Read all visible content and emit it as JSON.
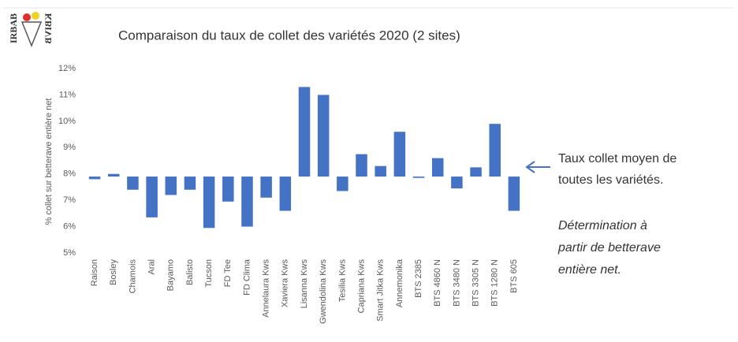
{
  "logo": {
    "top": "IRBAB",
    "bottom": "KBIVB"
  },
  "chart_data": {
    "type": "bar",
    "title": "Comparaison du taux de collet des variétés 2020 (2 sites)",
    "y_label": "% collet sur betterave entière net",
    "categories": [
      "Raison",
      "Bosley",
      "Chamois",
      "Aral",
      "Bayamo",
      "Balisto",
      "Tucson",
      "FD Tee",
      "FD Clima",
      "Annelaura Kws",
      "Xaviera Kws",
      "Lisanna Kws",
      "Gwendolina Kws",
      "Tesilia Kws",
      "Capriana Kws",
      "Smart Jitka Kws",
      "Annemonika",
      "BTS 2385",
      "BTS 4860 N",
      "BTS 3480 N",
      "BTS 3305 N",
      "BTS 1280 N",
      "BTS 605"
    ],
    "values": [
      7.8,
      8.0,
      7.4,
      6.35,
      7.2,
      7.4,
      5.95,
      6.95,
      6.0,
      7.1,
      6.6,
      11.3,
      11.0,
      7.35,
      8.75,
      8.3,
      9.6,
      7.85,
      8.6,
      7.45,
      8.25,
      9.9,
      6.6
    ],
    "baseline": 7.9,
    "color": "#4472c4",
    "ylim": [
      5,
      12
    ],
    "yticks": [
      {
        "value": 5,
        "label": "5%"
      },
      {
        "value": 6,
        "label": "6%"
      },
      {
        "value": 7,
        "label": "7%"
      },
      {
        "value": 8,
        "label": "8%"
      },
      {
        "value": 9,
        "label": "9%"
      },
      {
        "value": 10,
        "label": "10%"
      },
      {
        "value": 11,
        "label": "11%"
      },
      {
        "value": 12,
        "label": "12%"
      }
    ],
    "grid": false,
    "annotations": [
      "Taux collet moyen de",
      "toutes les variétés.",
      "Détermination à",
      "partir de betterave",
      "entière net."
    ]
  }
}
